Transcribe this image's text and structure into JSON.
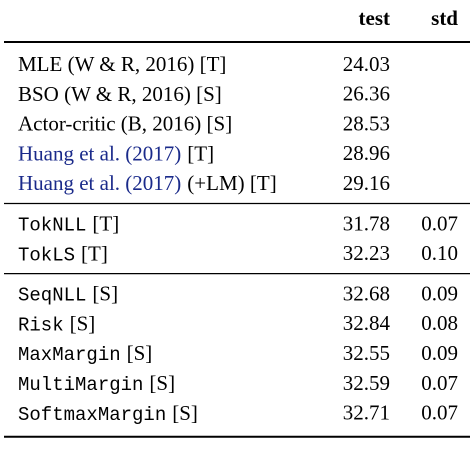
{
  "header": {
    "columns": [
      "test",
      "std"
    ]
  },
  "groups": [
    {
      "rows": [
        {
          "name": [
            {
              "text": "MLE (W & R, 2016) [T]",
              "style": "plain"
            }
          ],
          "test": "24.03"
        },
        {
          "name": [
            {
              "text": "BSO (W & R, 2016) [S]",
              "style": "plain"
            }
          ],
          "test": "26.36"
        },
        {
          "name": [
            {
              "text": "Actor-critic (B, 2016) [S]",
              "style": "plain"
            }
          ],
          "test": "28.53"
        },
        {
          "name": [
            {
              "text": "Huang et al. (2017)",
              "style": "cite"
            },
            {
              "text": "[T]",
              "style": "plain"
            }
          ],
          "test": "28.96"
        },
        {
          "name": [
            {
              "text": "Huang et al. (2017)",
              "style": "cite"
            },
            {
              "text": "(+LM) [T]",
              "style": "plain"
            }
          ],
          "test": "29.16"
        }
      ]
    },
    {
      "rows": [
        {
          "name": [
            {
              "text": "TokNLL",
              "style": "mono"
            },
            {
              "text": "[T]",
              "style": "plain"
            }
          ],
          "test": "31.78",
          "std": "0.07"
        },
        {
          "name": [
            {
              "text": "TokLS",
              "style": "mono"
            },
            {
              "text": "[T]",
              "style": "plain"
            }
          ],
          "test": "32.23",
          "std": "0.10"
        }
      ]
    },
    {
      "rows": [
        {
          "name": [
            {
              "text": "SeqNLL",
              "style": "mono"
            },
            {
              "text": "[S]",
              "style": "plain"
            }
          ],
          "test": "32.68",
          "std": "0.09"
        },
        {
          "name": [
            {
              "text": "Risk",
              "style": "mono"
            },
            {
              "text": "[S]",
              "style": "plain"
            }
          ],
          "test": "32.84",
          "std": "0.08"
        },
        {
          "name": [
            {
              "text": "MaxMargin",
              "style": "mono"
            },
            {
              "text": "[S]",
              "style": "plain"
            }
          ],
          "test": "32.55",
          "std": "0.09"
        },
        {
          "name": [
            {
              "text": "MultiMargin",
              "style": "mono"
            },
            {
              "text": "[S]",
              "style": "plain"
            }
          ],
          "test": "32.59",
          "std": "0.07"
        },
        {
          "name": [
            {
              "text": "SoftmaxMargin",
              "style": "mono"
            },
            {
              "text": "[S]",
              "style": "plain"
            }
          ],
          "test": "32.71",
          "std": "0.07"
        }
      ]
    }
  ]
}
